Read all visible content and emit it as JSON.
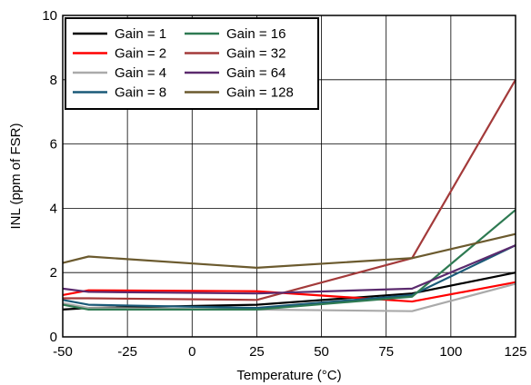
{
  "chart_data": {
    "type": "line",
    "title": "",
    "xlabel": "Temperature (°C)",
    "ylabel": "INL (ppm of FSR)",
    "xlim": [
      -50,
      125
    ],
    "ylim": [
      0,
      10
    ],
    "xticks": [
      "-50",
      "-25",
      "0",
      "25",
      "50",
      "75",
      "100",
      "125"
    ],
    "yticks": [
      "0",
      "2",
      "4",
      "6",
      "8",
      "10"
    ],
    "grid": true,
    "legend_position": "top-left",
    "series": [
      {
        "name": "Gain = 1",
        "color": "#000000",
        "x": [
          -50,
          -40,
          25,
          85,
          125
        ],
        "y": [
          0.85,
          0.9,
          1.0,
          1.35,
          2.0
        ]
      },
      {
        "name": "Gain = 2",
        "color": "#ff0000",
        "x": [
          -50,
          -40,
          25,
          85,
          125
        ],
        "y": [
          1.3,
          1.45,
          1.42,
          1.1,
          1.7
        ]
      },
      {
        "name": "Gain = 4",
        "color": "#aaaaaa",
        "x": [
          -50,
          -40,
          25,
          85,
          125
        ],
        "y": [
          1.05,
          0.9,
          0.85,
          0.8,
          1.65
        ]
      },
      {
        "name": "Gain = 8",
        "color": "#1a5a78",
        "x": [
          -50,
          -40,
          25,
          85,
          125
        ],
        "y": [
          1.15,
          1.0,
          0.9,
          1.3,
          2.85
        ]
      },
      {
        "name": "Gain = 16",
        "color": "#2e7a52",
        "x": [
          -50,
          -40,
          25,
          85,
          125
        ],
        "y": [
          1.0,
          0.85,
          0.85,
          1.25,
          3.95
        ]
      },
      {
        "name": "Gain = 32",
        "color": "#a33a3a",
        "x": [
          -50,
          -40,
          25,
          85,
          125
        ],
        "y": [
          1.2,
          1.2,
          1.15,
          2.45,
          8.0
        ]
      },
      {
        "name": "Gain = 64",
        "color": "#5b2a6e",
        "x": [
          -50,
          -40,
          25,
          85,
          125
        ],
        "y": [
          1.5,
          1.4,
          1.35,
          1.5,
          2.85
        ]
      },
      {
        "name": "Gain = 128",
        "color": "#6b5a2e",
        "x": [
          -50,
          -40,
          25,
          85,
          125
        ],
        "y": [
          2.3,
          2.5,
          2.15,
          2.45,
          3.2
        ]
      }
    ]
  }
}
